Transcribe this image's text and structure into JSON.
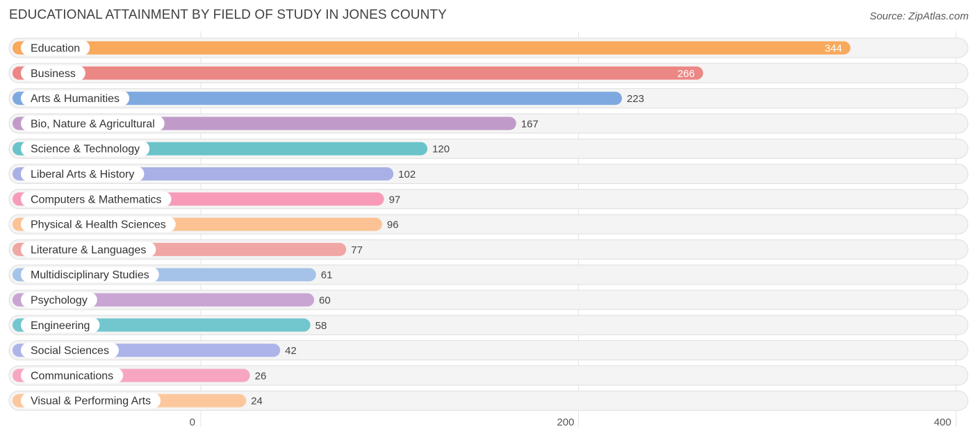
{
  "title": "EDUCATIONAL ATTAINMENT BY FIELD OF STUDY IN JONES COUNTY",
  "source": "Source: ZipAtlas.com",
  "chart_data": {
    "type": "bar",
    "orientation": "horizontal",
    "title": "EDUCATIONAL ATTAINMENT BY FIELD OF STUDY IN JONES COUNTY",
    "xlabel": "",
    "ylabel": "",
    "xlim": [
      0,
      400
    ],
    "ticks": [
      0,
      200,
      400
    ],
    "grid": true,
    "categories": [
      "Education",
      "Business",
      "Arts & Humanities",
      "Bio, Nature & Agricultural",
      "Science & Technology",
      "Liberal Arts & History",
      "Computers & Mathematics",
      "Physical & Health Sciences",
      "Literature & Languages",
      "Multidisciplinary Studies",
      "Psychology",
      "Engineering",
      "Social Sciences",
      "Communications",
      "Visual & Performing Arts"
    ],
    "values": [
      344,
      266,
      223,
      167,
      120,
      102,
      97,
      96,
      77,
      61,
      60,
      58,
      42,
      26,
      24
    ],
    "colors": [
      "#f8a95c",
      "#eb8784",
      "#7ea9e0",
      "#c09bc9",
      "#69c3c9",
      "#a9b0e6",
      "#f79bb9",
      "#fcc293",
      "#f0a6a4",
      "#a5c3e8",
      "#c8a5d3",
      "#72c6cd",
      "#adb4ea",
      "#f7a6c1",
      "#fcc79c"
    ]
  }
}
